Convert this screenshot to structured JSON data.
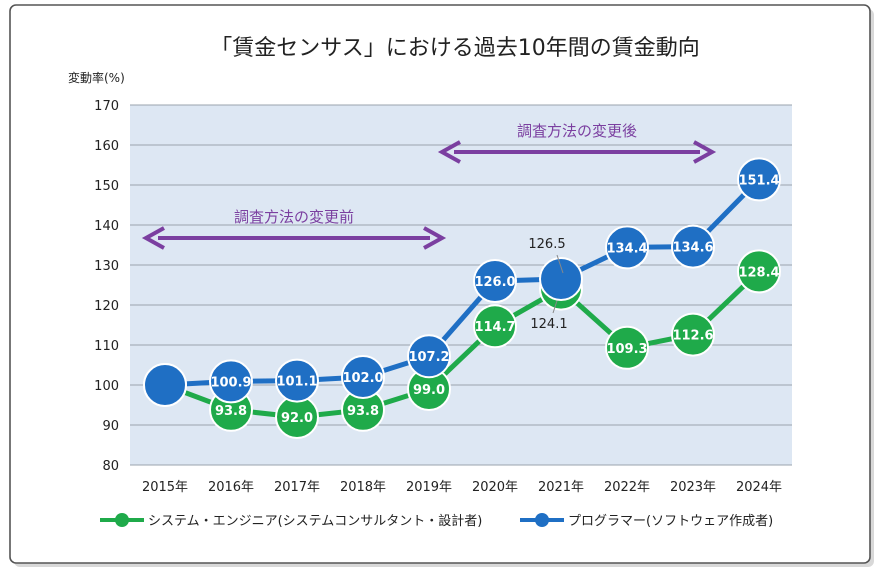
{
  "chart_data": {
    "type": "line",
    "title": "「賃金センサス」における過去10年間の賃金動向",
    "ylabel": "変動率(%)",
    "xlabel": "",
    "categories": [
      "2015年",
      "2016年",
      "2017年",
      "2018年",
      "2019年",
      "2020年",
      "2021年",
      "2022年",
      "2023年",
      "2024年"
    ],
    "ylim": [
      80,
      170
    ],
    "yticks": [
      80,
      90,
      100,
      110,
      120,
      130,
      140,
      150,
      160,
      170
    ],
    "grid": true,
    "legend_position": "bottom",
    "series": [
      {
        "name": "システム・エンジニア(システムコンサルタント・設計者)",
        "color": "#1faa4a",
        "values": [
          100,
          93.8,
          92.0,
          93.8,
          99.0,
          114.7,
          124.1,
          109.3,
          112.6,
          128.4
        ],
        "labels": [
          "",
          "93.8",
          "92.0",
          "93.8",
          "99.0",
          "114.7",
          "124.1",
          "109.3",
          "112.6",
          "128.4"
        ]
      },
      {
        "name": "プログラマー(ソフトウェア作成者)",
        "color": "#1f6fc4",
        "values": [
          100,
          100.9,
          101.1,
          102.0,
          107.2,
          126.0,
          126.5,
          134.4,
          134.6,
          151.4
        ],
        "labels": [
          "",
          "100.9",
          "101.1",
          "102.0",
          "107.2",
          "126.0",
          "126.5",
          "134.4",
          "134.6",
          "151.4"
        ]
      }
    ],
    "annotations": [
      {
        "text": "調査方法の変更前",
        "color": "#7b3fa0"
      },
      {
        "text": "調査方法の変更後",
        "color": "#7b3fa0"
      }
    ]
  }
}
